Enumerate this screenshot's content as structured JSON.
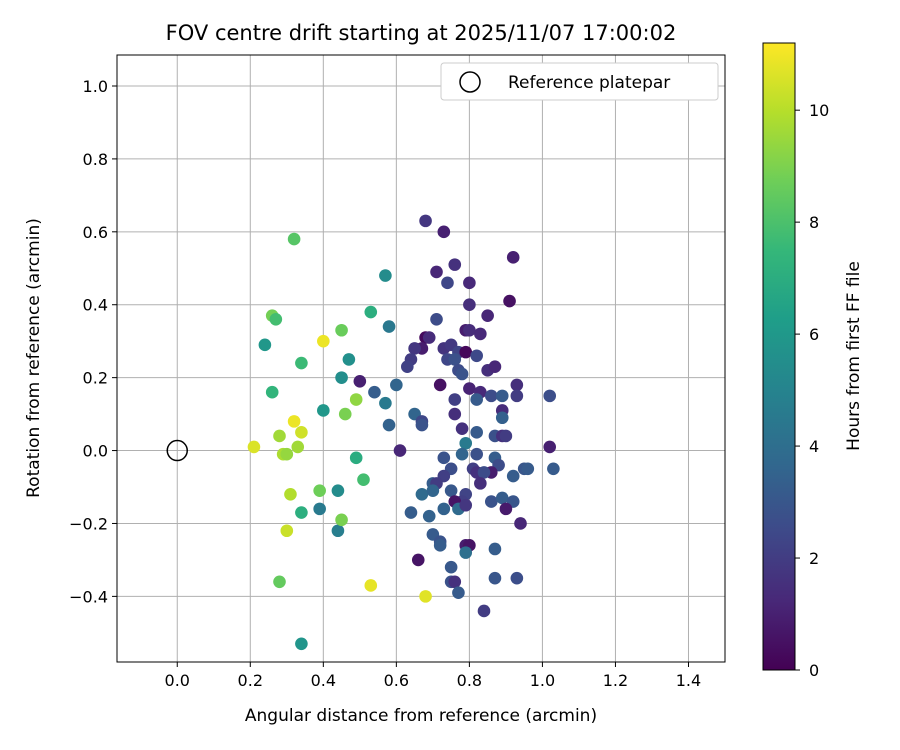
{
  "chart_data": {
    "type": "scatter",
    "title": "FOV centre drift starting at 2025/11/07 17:00:02",
    "xlabel": "Angular distance from reference (arcmin)",
    "ylabel": "Rotation from reference (arcmin)",
    "xlim": [
      -0.165,
      1.5
    ],
    "ylim": [
      -0.58,
      1.085
    ],
    "xticks": [
      0.0,
      0.2,
      0.4,
      0.6,
      0.8,
      1.0,
      1.2,
      1.4
    ],
    "yticks": [
      -0.4,
      -0.2,
      0.0,
      0.2,
      0.4,
      0.6,
      0.8,
      1.0
    ],
    "grid": true,
    "legend": {
      "position": "top-right",
      "label": "Reference platepar"
    },
    "reference_point": {
      "x": 0.0,
      "y": 0.0
    },
    "colorbar": {
      "label": "Hours from first FF file",
      "min": 0,
      "max": 11.2,
      "ticks": [
        0,
        2,
        4,
        6,
        8,
        10
      ],
      "colormap": "viridis"
    },
    "colormap": [
      "#440154",
      "#482878",
      "#3e4989",
      "#31688e",
      "#26828e",
      "#1f9e89",
      "#35b779",
      "#6ece58",
      "#b5de2b",
      "#fde725"
    ],
    "points": [
      {
        "x": 0.68,
        "y": 0.63,
        "c": 1.8
      },
      {
        "x": 0.73,
        "y": 0.6,
        "c": 1.0
      },
      {
        "x": 0.92,
        "y": 0.53,
        "c": 1.0
      },
      {
        "x": 0.71,
        "y": 0.49,
        "c": 1.2
      },
      {
        "x": 0.76,
        "y": 0.51,
        "c": 1.6
      },
      {
        "x": 0.74,
        "y": 0.46,
        "c": 2.4
      },
      {
        "x": 0.8,
        "y": 0.46,
        "c": 1.3
      },
      {
        "x": 0.8,
        "y": 0.4,
        "c": 1.5
      },
      {
        "x": 0.91,
        "y": 0.41,
        "c": 0.5
      },
      {
        "x": 0.71,
        "y": 0.36,
        "c": 2.6
      },
      {
        "x": 0.85,
        "y": 0.37,
        "c": 1.2
      },
      {
        "x": 0.68,
        "y": 0.31,
        "c": 0.3
      },
      {
        "x": 0.69,
        "y": 0.31,
        "c": 1.4
      },
      {
        "x": 0.79,
        "y": 0.33,
        "c": 0.9
      },
      {
        "x": 0.8,
        "y": 0.33,
        "c": 1.4
      },
      {
        "x": 0.83,
        "y": 0.32,
        "c": 1.3
      },
      {
        "x": 0.67,
        "y": 0.28,
        "c": 0.9
      },
      {
        "x": 0.65,
        "y": 0.28,
        "c": 1.8
      },
      {
        "x": 0.73,
        "y": 0.28,
        "c": 1.7
      },
      {
        "x": 0.75,
        "y": 0.29,
        "c": 1.9
      },
      {
        "x": 0.77,
        "y": 0.27,
        "c": 2.3
      },
      {
        "x": 0.79,
        "y": 0.27,
        "c": 0.2
      },
      {
        "x": 0.64,
        "y": 0.25,
        "c": 2.0
      },
      {
        "x": 0.74,
        "y": 0.25,
        "c": 2.4
      },
      {
        "x": 0.76,
        "y": 0.25,
        "c": 2.8
      },
      {
        "x": 0.82,
        "y": 0.26,
        "c": 2.5
      },
      {
        "x": 0.85,
        "y": 0.22,
        "c": 1.5
      },
      {
        "x": 0.87,
        "y": 0.23,
        "c": 1.2
      },
      {
        "x": 0.63,
        "y": 0.23,
        "c": 2.2
      },
      {
        "x": 0.6,
        "y": 0.18,
        "c": 3.6
      },
      {
        "x": 0.72,
        "y": 0.18,
        "c": 0.5
      },
      {
        "x": 0.77,
        "y": 0.22,
        "c": 2.6
      },
      {
        "x": 0.78,
        "y": 0.21,
        "c": 2.9
      },
      {
        "x": 0.93,
        "y": 0.18,
        "c": 1.5
      },
      {
        "x": 0.8,
        "y": 0.17,
        "c": 1.1
      },
      {
        "x": 0.83,
        "y": 0.16,
        "c": 1.3
      },
      {
        "x": 0.86,
        "y": 0.15,
        "c": 2.6
      },
      {
        "x": 0.89,
        "y": 0.15,
        "c": 3.2
      },
      {
        "x": 0.93,
        "y": 0.15,
        "c": 2.0
      },
      {
        "x": 1.02,
        "y": 0.15,
        "c": 2.7
      },
      {
        "x": 0.76,
        "y": 0.14,
        "c": 2.1
      },
      {
        "x": 0.82,
        "y": 0.14,
        "c": 3.2
      },
      {
        "x": 0.89,
        "y": 0.11,
        "c": 1.4
      },
      {
        "x": 0.76,
        "y": 0.1,
        "c": 1.5
      },
      {
        "x": 0.65,
        "y": 0.1,
        "c": 3.6
      },
      {
        "x": 0.67,
        "y": 0.08,
        "c": 2.4
      },
      {
        "x": 0.67,
        "y": 0.07,
        "c": 2.9
      },
      {
        "x": 0.78,
        "y": 0.06,
        "c": 1.6
      },
      {
        "x": 0.89,
        "y": 0.09,
        "c": 3.4
      },
      {
        "x": 0.82,
        "y": 0.05,
        "c": 3.2
      },
      {
        "x": 0.87,
        "y": 0.04,
        "c": 2.8
      },
      {
        "x": 0.89,
        "y": 0.04,
        "c": 1.6
      },
      {
        "x": 0.9,
        "y": 0.04,
        "c": 2.0
      },
      {
        "x": 0.79,
        "y": 0.02,
        "c": 4.6
      },
      {
        "x": 1.02,
        "y": 0.01,
        "c": 1.0
      },
      {
        "x": 0.73,
        "y": -0.02,
        "c": 2.9
      },
      {
        "x": 0.78,
        "y": -0.01,
        "c": 3.6
      },
      {
        "x": 0.82,
        "y": -0.01,
        "c": 2.8
      },
      {
        "x": 0.87,
        "y": -0.02,
        "c": 3.3
      },
      {
        "x": 0.88,
        "y": -0.04,
        "c": 2.6
      },
      {
        "x": 0.75,
        "y": -0.05,
        "c": 2.7
      },
      {
        "x": 0.81,
        "y": -0.05,
        "c": 2.1
      },
      {
        "x": 0.82,
        "y": -0.06,
        "c": 1.6
      },
      {
        "x": 0.86,
        "y": -0.06,
        "c": 0.9
      },
      {
        "x": 0.95,
        "y": -0.05,
        "c": 3.0
      },
      {
        "x": 0.96,
        "y": -0.05,
        "c": 3.2
      },
      {
        "x": 1.03,
        "y": -0.05,
        "c": 3.2
      },
      {
        "x": 0.73,
        "y": -0.07,
        "c": 2.1
      },
      {
        "x": 0.84,
        "y": -0.06,
        "c": 2.6
      },
      {
        "x": 0.92,
        "y": -0.07,
        "c": 3.3
      },
      {
        "x": 0.83,
        "y": -0.09,
        "c": 1.5
      },
      {
        "x": 0.7,
        "y": -0.09,
        "c": 3.3
      },
      {
        "x": 0.71,
        "y": -0.09,
        "c": 2.0
      },
      {
        "x": 0.67,
        "y": -0.12,
        "c": 3.9
      },
      {
        "x": 0.7,
        "y": -0.11,
        "c": 3.6
      },
      {
        "x": 0.75,
        "y": -0.11,
        "c": 3.1
      },
      {
        "x": 0.79,
        "y": -0.12,
        "c": 2.3
      },
      {
        "x": 0.78,
        "y": -0.14,
        "c": 2.1
      },
      {
        "x": 0.76,
        "y": -0.14,
        "c": 0.6
      },
      {
        "x": 0.86,
        "y": -0.14,
        "c": 2.9
      },
      {
        "x": 0.89,
        "y": -0.13,
        "c": 3.3
      },
      {
        "x": 0.92,
        "y": -0.14,
        "c": 3.0
      },
      {
        "x": 0.73,
        "y": -0.16,
        "c": 3.5
      },
      {
        "x": 0.77,
        "y": -0.16,
        "c": 3.9
      },
      {
        "x": 0.79,
        "y": -0.15,
        "c": 1.8
      },
      {
        "x": 0.64,
        "y": -0.17,
        "c": 3.3
      },
      {
        "x": 0.69,
        "y": -0.18,
        "c": 3.5
      },
      {
        "x": 0.9,
        "y": -0.16,
        "c": 0.8
      },
      {
        "x": 0.94,
        "y": -0.2,
        "c": 1.2
      },
      {
        "x": 0.7,
        "y": -0.23,
        "c": 3.2
      },
      {
        "x": 0.72,
        "y": -0.25,
        "c": 2.9
      },
      {
        "x": 0.72,
        "y": -0.26,
        "c": 3.3
      },
      {
        "x": 0.79,
        "y": -0.26,
        "c": 0.9
      },
      {
        "x": 0.8,
        "y": -0.26,
        "c": 0.6
      },
      {
        "x": 0.87,
        "y": -0.27,
        "c": 3.3
      },
      {
        "x": 0.79,
        "y": -0.28,
        "c": 4.1
      },
      {
        "x": 0.66,
        "y": -0.3,
        "c": 0.6
      },
      {
        "x": 0.75,
        "y": -0.32,
        "c": 3.1
      },
      {
        "x": 0.75,
        "y": -0.36,
        "c": 2.8
      },
      {
        "x": 0.76,
        "y": -0.36,
        "c": 1.6
      },
      {
        "x": 0.87,
        "y": -0.35,
        "c": 3.0
      },
      {
        "x": 0.93,
        "y": -0.35,
        "c": 2.7
      },
      {
        "x": 0.77,
        "y": -0.39,
        "c": 3.2
      },
      {
        "x": 0.84,
        "y": -0.44,
        "c": 2.0
      },
      {
        "x": 0.61,
        "y": 0.0,
        "c": 1.2
      },
      {
        "x": 0.5,
        "y": 0.19,
        "c": 1.0
      },
      {
        "x": 0.54,
        "y": 0.16,
        "c": 3.3
      },
      {
        "x": 0.57,
        "y": 0.13,
        "c": 4.6
      },
      {
        "x": 0.58,
        "y": 0.07,
        "c": 3.5
      },
      {
        "x": 0.58,
        "y": 0.34,
        "c": 4.5
      },
      {
        "x": 0.57,
        "y": 0.48,
        "c": 5.4
      },
      {
        "x": 0.53,
        "y": 0.38,
        "c": 7.0
      },
      {
        "x": 0.47,
        "y": 0.25,
        "c": 5.6
      },
      {
        "x": 0.45,
        "y": 0.2,
        "c": 5.5
      },
      {
        "x": 0.45,
        "y": 0.33,
        "c": 8.6
      },
      {
        "x": 0.4,
        "y": 0.3,
        "c": 10.9
      },
      {
        "x": 0.4,
        "y": 0.11,
        "c": 5.9
      },
      {
        "x": 0.46,
        "y": 0.1,
        "c": 8.9
      },
      {
        "x": 0.49,
        "y": 0.14,
        "c": 9.3
      },
      {
        "x": 0.49,
        "y": -0.02,
        "c": 6.9
      },
      {
        "x": 0.51,
        "y": -0.08,
        "c": 7.8
      },
      {
        "x": 0.44,
        "y": -0.11,
        "c": 5.4
      },
      {
        "x": 0.39,
        "y": -0.11,
        "c": 8.7
      },
      {
        "x": 0.39,
        "y": -0.16,
        "c": 4.6
      },
      {
        "x": 0.44,
        "y": -0.22,
        "c": 4.8
      },
      {
        "x": 0.45,
        "y": -0.19,
        "c": 8.9
      },
      {
        "x": 0.53,
        "y": -0.37,
        "c": 10.8
      },
      {
        "x": 0.34,
        "y": 0.24,
        "c": 7.6
      },
      {
        "x": 0.32,
        "y": 0.58,
        "c": 8.2
      },
      {
        "x": 0.26,
        "y": 0.37,
        "c": 8.8
      },
      {
        "x": 0.27,
        "y": 0.36,
        "c": 7.8
      },
      {
        "x": 0.24,
        "y": 0.29,
        "c": 5.9
      },
      {
        "x": 0.26,
        "y": 0.16,
        "c": 7.3
      },
      {
        "x": 0.32,
        "y": 0.08,
        "c": 10.9
      },
      {
        "x": 0.34,
        "y": 0.05,
        "c": 10.4
      },
      {
        "x": 0.28,
        "y": 0.04,
        "c": 9.6
      },
      {
        "x": 0.21,
        "y": 0.01,
        "c": 10.6
      },
      {
        "x": 0.33,
        "y": 0.01,
        "c": 9.6
      },
      {
        "x": 0.29,
        "y": -0.01,
        "c": 9.8
      },
      {
        "x": 0.3,
        "y": -0.01,
        "c": 9.4
      },
      {
        "x": 0.31,
        "y": -0.12,
        "c": 9.9
      },
      {
        "x": 0.34,
        "y": -0.17,
        "c": 7.0
      },
      {
        "x": 0.3,
        "y": -0.22,
        "c": 10.3
      },
      {
        "x": 0.28,
        "y": -0.36,
        "c": 8.5
      },
      {
        "x": 0.34,
        "y": -0.53,
        "c": 5.8
      },
      {
        "x": 0.68,
        "y": -0.4,
        "c": 10.7
      }
    ]
  }
}
